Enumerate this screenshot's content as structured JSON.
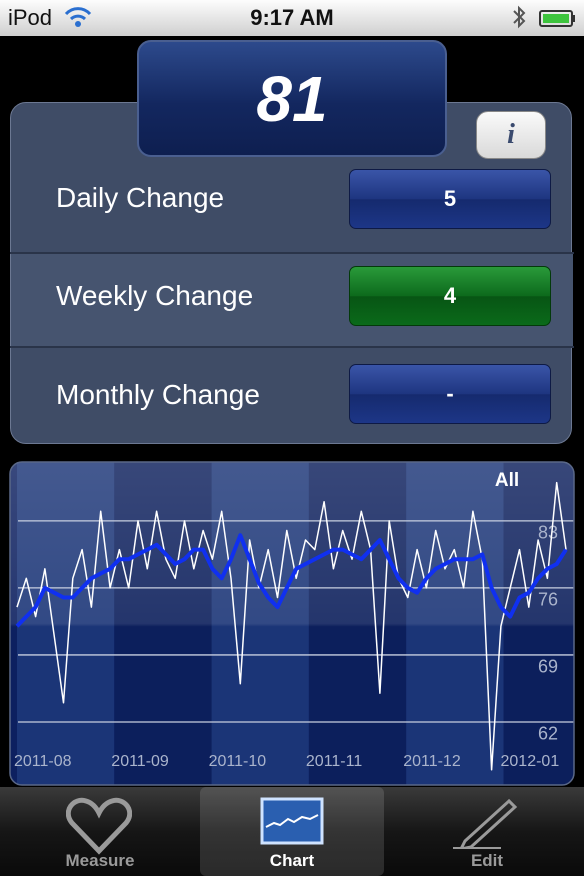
{
  "status_bar": {
    "carrier": "iPod",
    "time": "9:17 AM"
  },
  "value_box": {
    "value": 81
  },
  "info_button": {
    "label": "i"
  },
  "changes": [
    {
      "label": "Daily Change",
      "value": 5
    },
    {
      "label": "Weekly Change",
      "value": 4
    },
    {
      "label": "Monthly Change",
      "value": "-"
    }
  ],
  "chart_data": {
    "type": "line",
    "range_label": "All",
    "months": [
      "2011-08",
      "2011-09",
      "2011-10",
      "2011-11",
      "2011-12",
      "2012-01"
    ],
    "ylim": [
      55,
      88
    ],
    "yticks": [
      83,
      76,
      69,
      62
    ],
    "grid": true,
    "series": [
      {
        "color": "#ffffff",
        "values": [
          74,
          77,
          73,
          78,
          71,
          64,
          77,
          80,
          74,
          84,
          76,
          80,
          76,
          83,
          78,
          84,
          79,
          77,
          83,
          78,
          82,
          79,
          84,
          77,
          66,
          81,
          76,
          80,
          75,
          82,
          77,
          81,
          80,
          85,
          78,
          82,
          79,
          84,
          80,
          65,
          83,
          77,
          75,
          80,
          76,
          82,
          78,
          80,
          76,
          84,
          79,
          57,
          72,
          76,
          80,
          74,
          81,
          77,
          87,
          80
        ]
      },
      {
        "color": "#1030f0",
        "values": [
          72,
          73,
          74,
          76,
          75.5,
          75,
          75,
          76,
          77,
          77.5,
          78,
          79,
          79,
          79.5,
          80,
          80.5,
          79.5,
          78.5,
          79,
          80,
          80,
          78,
          77,
          79,
          81.5,
          79,
          76.5,
          75,
          74,
          76,
          78,
          78.5,
          79,
          79.5,
          80,
          80,
          79.5,
          79,
          80,
          81,
          79,
          77,
          76,
          75.5,
          77,
          78,
          78.5,
          79,
          79,
          79,
          79.5,
          76,
          74,
          73,
          75,
          75.5,
          77,
          78,
          78.5,
          80
        ]
      }
    ]
  },
  "tabs": [
    {
      "label": "Measure"
    },
    {
      "label": "Chart"
    },
    {
      "label": "Edit"
    }
  ]
}
